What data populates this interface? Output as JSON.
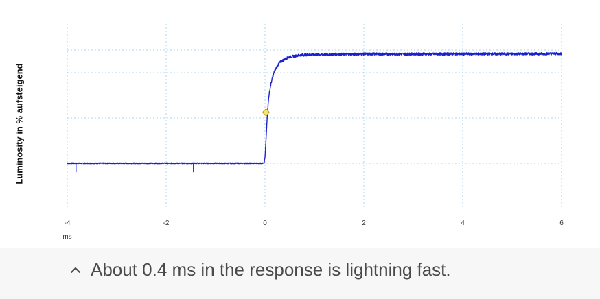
{
  "chart_data": {
    "type": "line",
    "ylabel": "Luminosity in % aufsteigend",
    "xlabel": "ms",
    "x_ticks": [
      "-4",
      "-2",
      "0",
      "2",
      "4",
      "6"
    ],
    "xlim": [
      -4,
      6
    ],
    "ylim": [
      0,
      100
    ],
    "grid": true,
    "series": [
      {
        "x": [
          -4.0,
          -0.02,
          0.0,
          0.02,
          0.05,
          0.08,
          0.12,
          0.16,
          0.2,
          0.25,
          0.3,
          0.4,
          0.5,
          0.7,
          1.0,
          1.5,
          2.0,
          3.0,
          4.0,
          5.0,
          6.0
        ],
        "y": [
          0,
          0,
          5,
          20,
          45,
          60,
          70,
          77,
          82,
          86,
          89,
          92,
          94,
          95.5,
          96,
          96.3,
          96.5,
          96.5,
          96.6,
          96.6,
          96.8
        ]
      }
    ],
    "marker": {
      "x": 0.02,
      "y": 45
    }
  },
  "colors": {
    "line": "#1a22cc",
    "grid": "#a9d6e8",
    "marker_fill": "#f7e27a",
    "marker_stroke": "#b89a16",
    "tick_text": "#333333"
  },
  "caption": {
    "icon": "chevron-up-icon",
    "text": "About 0.4 ms in the response is lightning fast."
  }
}
